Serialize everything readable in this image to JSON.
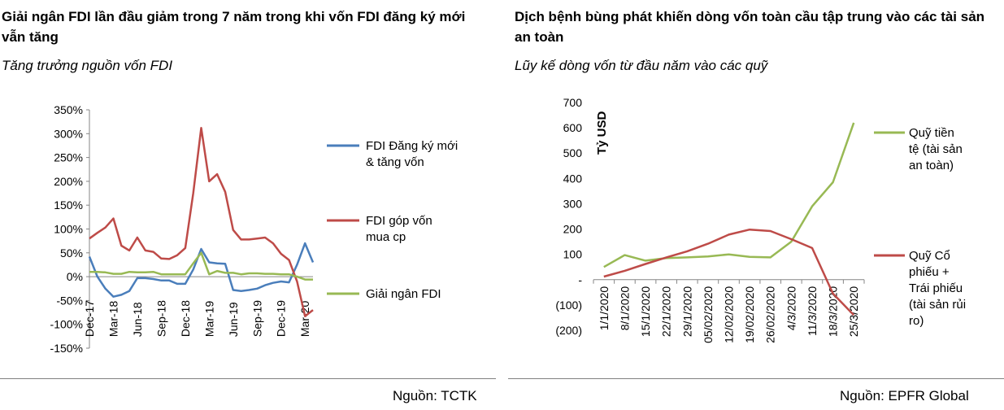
{
  "left": {
    "title": "Giải ngân FDI lần đầu giảm trong 7 năm trong khi vốn FDI đăng ký mới vẫn tăng",
    "subtitle": "Tăng trưởng nguồn vốn FDI",
    "source": "Nguồn: TCTK"
  },
  "right": {
    "title": "Dịch bệnh bùng phát khiến dòng vốn toàn cầu tập trung vào các tài sản an toàn",
    "subtitle": "Lũy kế dòng vốn từ đầu năm vào các quỹ",
    "source": "Nguồn: EPFR Global"
  },
  "chart_data": [
    {
      "type": "line",
      "ylim": [
        -150,
        350
      ],
      "yticks": [
        "350%",
        "300%",
        "250%",
        "200%",
        "150%",
        "100%",
        "50%",
        "0%",
        "-50%",
        "-100%",
        "-150%"
      ],
      "ytick_values": [
        350,
        300,
        250,
        200,
        150,
        100,
        50,
        0,
        -50,
        -100,
        -150
      ],
      "x_tick_labels": [
        "Dec-17",
        "Mar-18",
        "Jun-18",
        "Sep-18",
        "Dec-18",
        "Mar-19",
        "Jun-19",
        "Sep-19",
        "Dec-19",
        "Mar-20"
      ],
      "x_tick_positions": [
        0,
        3,
        6,
        9,
        12,
        15,
        18,
        21,
        24,
        27
      ],
      "legend_position": "right",
      "series": [
        {
          "name": "FDI Đăng ký mới & tăng vốn",
          "color": "#4a7ebb",
          "values": [
            42,
            0,
            -25,
            -42,
            -38,
            -30,
            -3,
            -3,
            -5,
            -8,
            -8,
            -15,
            -15,
            15,
            58,
            30,
            28,
            27,
            -28,
            -30,
            -28,
            -25,
            -18,
            -13,
            -10,
            -12,
            25,
            70,
            30
          ]
        },
        {
          "name": "FDI góp vốn mua cp",
          "color": "#be4b48",
          "values": [
            80,
            92,
            103,
            122,
            65,
            55,
            82,
            55,
            52,
            38,
            37,
            45,
            60,
            175,
            312,
            200,
            215,
            178,
            98,
            78,
            78,
            80,
            82,
            70,
            48,
            35,
            -10,
            -83,
            -70
          ]
        },
        {
          "name": "Giải ngân FDI",
          "color": "#98b954",
          "values": [
            10,
            10,
            9,
            6,
            6,
            10,
            9,
            9,
            10,
            5,
            5,
            5,
            5,
            28,
            50,
            5,
            12,
            8,
            8,
            5,
            7,
            7,
            6,
            6,
            5,
            5,
            0,
            -6,
            -6
          ]
        }
      ]
    },
    {
      "type": "line",
      "ylabel": "Tỷ USD",
      "ylim": [
        -200,
        700
      ],
      "yticks": [
        "700",
        "600",
        "500",
        "400",
        "300",
        "200",
        "100",
        "-",
        "(100)",
        "(200)"
      ],
      "ytick_values": [
        700,
        600,
        500,
        400,
        300,
        200,
        100,
        0,
        -100,
        -200
      ],
      "categories": [
        "1/1/2020",
        "8/1/2020",
        "15/1/2020",
        "22/1/2020",
        "29/1/2020",
        "05/02/2020",
        "12/02/2020",
        "19/02/2020",
        "26/02/2020",
        "4/3/2020",
        "11/3/2020",
        "18/3/2020",
        "25/3/2020"
      ],
      "legend_position": "right",
      "series": [
        {
          "name": "Quỹ tiền tệ (tài sản an toàn)",
          "color": "#98b954",
          "values": [
            50,
            97,
            75,
            85,
            88,
            92,
            100,
            90,
            88,
            150,
            290,
            385,
            620
          ]
        },
        {
          "name": "Quỹ Cổ phiếu + Trái phiếu (tài sản rủi ro)",
          "color": "#be4b48",
          "values": [
            12,
            35,
            62,
            88,
            112,
            142,
            178,
            198,
            192,
            160,
            125,
            -55,
            -140
          ]
        }
      ]
    }
  ]
}
